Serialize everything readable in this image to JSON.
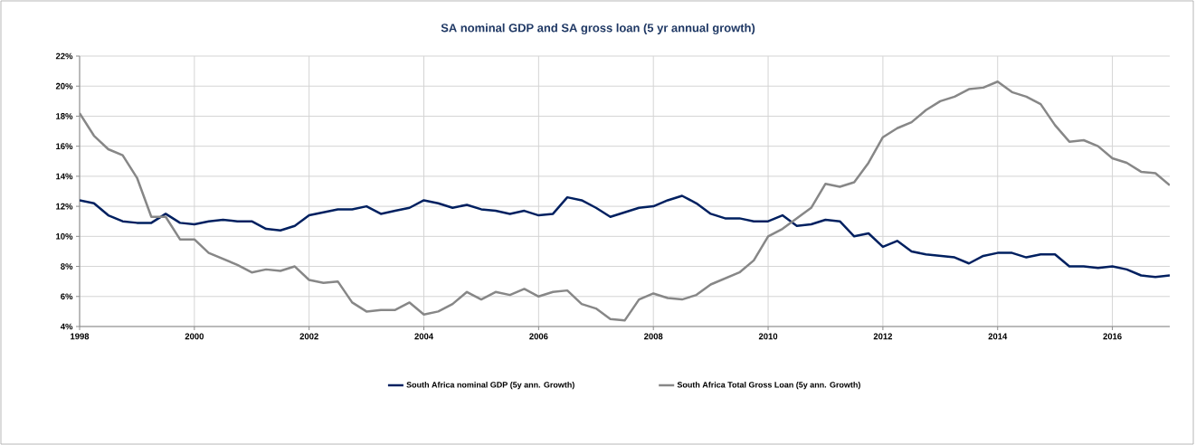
{
  "chart_data": {
    "type": "line",
    "title": "SA nominal GDP and SA gross loan (5 yr annual growth)",
    "x": [
      1998.0,
      1998.25,
      1998.5,
      1998.75,
      1999.0,
      1999.25,
      1999.5,
      1999.75,
      2000.0,
      2000.25,
      2000.5,
      2000.75,
      2001.0,
      2001.25,
      2001.5,
      2001.75,
      2002.0,
      2002.25,
      2002.5,
      2002.75,
      2003.0,
      2003.25,
      2003.5,
      2003.75,
      2004.0,
      2004.25,
      2004.5,
      2004.75,
      2005.0,
      2005.25,
      2005.5,
      2005.75,
      2006.0,
      2006.25,
      2006.5,
      2006.75,
      2007.0,
      2007.25,
      2007.5,
      2007.75,
      2008.0,
      2008.25,
      2008.5,
      2008.75,
      2009.0,
      2009.25,
      2009.5,
      2009.75,
      2010.0,
      2010.25,
      2010.5,
      2010.75,
      2011.0,
      2011.25,
      2011.5,
      2011.75,
      2012.0,
      2012.25,
      2012.5,
      2012.75,
      2013.0,
      2013.25,
      2013.5,
      2013.75,
      2014.0,
      2014.25,
      2014.5,
      2014.75,
      2015.0,
      2015.25,
      2015.5,
      2015.75,
      2016.0,
      2016.25,
      2016.5,
      2016.75,
      2017.0
    ],
    "series": [
      {
        "name": "South Africa nominal GDP (5y ann. Growth)",
        "color": "#002060",
        "values": [
          12.4,
          12.2,
          11.4,
          11.0,
          10.9,
          10.9,
          11.5,
          10.9,
          10.8,
          11.0,
          11.1,
          11.0,
          11.0,
          10.5,
          10.4,
          10.7,
          11.4,
          11.6,
          11.8,
          11.8,
          12.0,
          11.5,
          11.7,
          11.9,
          12.4,
          12.2,
          11.9,
          12.1,
          11.8,
          11.7,
          11.5,
          11.7,
          11.4,
          11.5,
          12.6,
          12.4,
          11.9,
          11.3,
          11.6,
          11.9,
          12.0,
          12.4,
          12.7,
          12.2,
          11.5,
          11.2,
          11.2,
          11.0,
          11.0,
          11.4,
          10.7,
          10.8,
          11.1,
          11.0,
          10.0,
          10.2,
          9.3,
          9.7,
          9.0,
          8.8,
          8.7,
          8.6,
          8.2,
          8.7,
          8.9,
          8.9,
          8.6,
          8.8,
          8.8,
          8.0,
          8.0,
          7.9,
          8.0,
          7.8,
          7.4,
          7.3,
          7.4
        ]
      },
      {
        "name": "South Africa Total Gross Loan (5y ann. Growth)",
        "color": "#878787",
        "values": [
          18.2,
          16.7,
          15.8,
          15.4,
          13.9,
          11.3,
          11.3,
          9.8,
          9.8,
          8.9,
          8.5,
          8.1,
          7.6,
          7.8,
          7.7,
          8.0,
          7.1,
          6.9,
          7.0,
          5.6,
          5.0,
          5.1,
          5.1,
          5.6,
          4.8,
          5.0,
          5.5,
          6.3,
          5.8,
          6.3,
          6.1,
          6.5,
          6.0,
          6.3,
          6.4,
          5.5,
          5.2,
          4.5,
          4.4,
          5.8,
          6.2,
          5.9,
          5.8,
          6.1,
          6.8,
          7.2,
          7.6,
          8.4,
          10.0,
          10.5,
          11.2,
          11.9,
          13.5,
          13.3,
          13.6,
          14.9,
          16.6,
          17.2,
          17.6,
          18.4,
          19.0,
          19.3,
          19.8,
          19.9,
          20.3,
          19.6,
          19.3,
          18.8,
          17.4,
          16.3,
          16.4,
          16.0,
          15.2,
          14.9,
          14.3,
          14.2,
          13.4
        ]
      }
    ],
    "xlim": [
      1998,
      2017
    ],
    "xticks": [
      1998,
      2000,
      2002,
      2004,
      2006,
      2008,
      2010,
      2012,
      2014,
      2016
    ],
    "ylim": [
      4,
      22
    ],
    "yticks": [
      {
        "value": 4,
        "label": "4%"
      },
      {
        "value": 6,
        "label": "6%"
      },
      {
        "value": 8,
        "label": "8%"
      },
      {
        "value": 10,
        "label": "10%"
      },
      {
        "value": 12,
        "label": "12%"
      },
      {
        "value": 14,
        "label": "14%"
      },
      {
        "value": 16,
        "label": "16%"
      },
      {
        "value": 18,
        "label": "18%"
      },
      {
        "value": 20,
        "label": "20%"
      },
      {
        "value": 22,
        "label": "22%"
      }
    ],
    "grid": true,
    "legend": "bottom",
    "marker": "none",
    "line_style": "solid"
  }
}
